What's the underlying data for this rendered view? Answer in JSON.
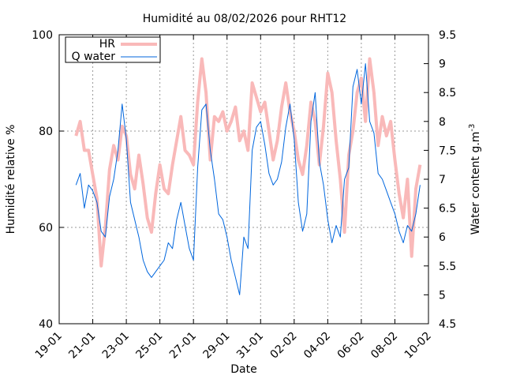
{
  "chart_data": {
    "type": "line",
    "title": "Humidité au 08/02/2026 pour RHT12",
    "xlabel": "Date",
    "ylabel_left": "Humidité relative %",
    "ylabel_right_prefix": "Water content g.m",
    "ylabel_right_sup": "-3",
    "xlim": [
      "2026-01-19",
      "2026-02-10"
    ],
    "ylim_left": [
      40,
      100
    ],
    "ylim_right": [
      4.5,
      9.5
    ],
    "x_ticks": [
      "19-01",
      "21-01",
      "23-01",
      "25-01",
      "27-01",
      "29-01",
      "31-01",
      "02-02",
      "04-02",
      "06-02",
      "08-02",
      "10-02"
    ],
    "y_left_ticks": [
      "40",
      "60",
      "80",
      "100"
    ],
    "y_right_ticks": [
      "4.5",
      "5",
      "5.5",
      "6",
      "6.5",
      "7",
      "7.5",
      "8",
      "8.5",
      "9",
      "9.5"
    ],
    "grid": true,
    "legend_position": "top-left",
    "series": [
      {
        "name": "HR",
        "axis": "left",
        "color": "#f9b9b9",
        "x": [
          "2026-01-20 00:00",
          "2026-01-20 06:00",
          "2026-01-20 12:00",
          "2026-01-20 18:00",
          "2026-01-21 00:00",
          "2026-01-21 06:00",
          "2026-01-21 12:00",
          "2026-01-21 18:00",
          "2026-01-22 00:00",
          "2026-01-22 06:00",
          "2026-01-22 12:00",
          "2026-01-22 18:00",
          "2026-01-23 00:00",
          "2026-01-23 06:00",
          "2026-01-23 12:00",
          "2026-01-23 18:00",
          "2026-01-24 00:00",
          "2026-01-24 06:00",
          "2026-01-24 12:00",
          "2026-01-24 18:00",
          "2026-01-25 00:00",
          "2026-01-25 06:00",
          "2026-01-25 12:00",
          "2026-01-25 18:00",
          "2026-01-26 00:00",
          "2026-01-26 06:00",
          "2026-01-26 12:00",
          "2026-01-26 18:00",
          "2026-01-27 00:00",
          "2026-01-27 06:00",
          "2026-01-27 12:00",
          "2026-01-27 18:00",
          "2026-01-28 00:00",
          "2026-01-28 06:00",
          "2026-01-28 12:00",
          "2026-01-28 18:00",
          "2026-01-29 00:00",
          "2026-01-29 06:00",
          "2026-01-29 12:00",
          "2026-01-29 18:00",
          "2026-01-30 00:00",
          "2026-01-30 06:00",
          "2026-01-30 12:00",
          "2026-01-30 18:00",
          "2026-01-31 00:00",
          "2026-01-31 06:00",
          "2026-01-31 12:00",
          "2026-01-31 18:00",
          "2026-02-01 00:00",
          "2026-02-01 06:00",
          "2026-02-01 12:00",
          "2026-02-01 18:00",
          "2026-02-02 00:00",
          "2026-02-02 06:00",
          "2026-02-02 12:00",
          "2026-02-02 18:00",
          "2026-02-03 00:00",
          "2026-02-03 06:00",
          "2026-02-03 12:00",
          "2026-02-03 18:00",
          "2026-02-04 00:00",
          "2026-02-04 06:00",
          "2026-02-04 12:00",
          "2026-02-04 18:00",
          "2026-02-05 00:00",
          "2026-02-05 06:00",
          "2026-02-05 12:00",
          "2026-02-05 18:00",
          "2026-02-06 00:00",
          "2026-02-06 06:00",
          "2026-02-06 12:00",
          "2026-02-06 18:00",
          "2026-02-07 00:00",
          "2026-02-07 06:00",
          "2026-02-07 12:00",
          "2026-02-07 18:00",
          "2026-02-08 00:00",
          "2026-02-08 06:00",
          "2026-02-08 12:00",
          "2026-02-08 18:00",
          "2026-02-09 00:00",
          "2026-02-09 06:00",
          "2026-02-09 12:00"
        ],
        "values": [
          79,
          82,
          76,
          76,
          71,
          66,
          52,
          60,
          72,
          77,
          74,
          81,
          79,
          71,
          68,
          75,
          69,
          62,
          59,
          67,
          73,
          68,
          67,
          73,
          78,
          83,
          76,
          75,
          73,
          86,
          95,
          88,
          74,
          83,
          82,
          84,
          80,
          82,
          85,
          78,
          80,
          76,
          90,
          87,
          84,
          86,
          80,
          74,
          78,
          85,
          90,
          84,
          80,
          74,
          71,
          77,
          86,
          82,
          73,
          81,
          92,
          88,
          78,
          70,
          59,
          75,
          80,
          88,
          91,
          82,
          95,
          88,
          77,
          83,
          79,
          82,
          74,
          67,
          62,
          70,
          54,
          68,
          73
        ]
      },
      {
        "name": "Q water",
        "axis": "right",
        "color": "#0066dd",
        "x": [
          "2026-01-20 00:00",
          "2026-01-20 06:00",
          "2026-01-20 12:00",
          "2026-01-20 18:00",
          "2026-01-21 00:00",
          "2026-01-21 06:00",
          "2026-01-21 12:00",
          "2026-01-21 18:00",
          "2026-01-22 00:00",
          "2026-01-22 06:00",
          "2026-01-22 12:00",
          "2026-01-22 18:00",
          "2026-01-23 00:00",
          "2026-01-23 06:00",
          "2026-01-23 12:00",
          "2026-01-23 18:00",
          "2026-01-24 00:00",
          "2026-01-24 06:00",
          "2026-01-24 12:00",
          "2026-01-24 18:00",
          "2026-01-25 00:00",
          "2026-01-25 06:00",
          "2026-01-25 12:00",
          "2026-01-25 18:00",
          "2026-01-26 00:00",
          "2026-01-26 06:00",
          "2026-01-26 12:00",
          "2026-01-26 18:00",
          "2026-01-27 00:00",
          "2026-01-27 06:00",
          "2026-01-27 12:00",
          "2026-01-27 18:00",
          "2026-01-28 00:00",
          "2026-01-28 06:00",
          "2026-01-28 12:00",
          "2026-01-28 18:00",
          "2026-01-29 00:00",
          "2026-01-29 06:00",
          "2026-01-29 12:00",
          "2026-01-29 18:00",
          "2026-01-30 00:00",
          "2026-01-30 06:00",
          "2026-01-30 12:00",
          "2026-01-30 18:00",
          "2026-01-31 00:00",
          "2026-01-31 06:00",
          "2026-01-31 12:00",
          "2026-01-31 18:00",
          "2026-02-01 00:00",
          "2026-02-01 06:00",
          "2026-02-01 12:00",
          "2026-02-01 18:00",
          "2026-02-02 00:00",
          "2026-02-02 06:00",
          "2026-02-02 12:00",
          "2026-02-02 18:00",
          "2026-02-03 00:00",
          "2026-02-03 06:00",
          "2026-02-03 12:00",
          "2026-02-03 18:00",
          "2026-02-04 00:00",
          "2026-02-04 06:00",
          "2026-02-04 12:00",
          "2026-02-04 18:00",
          "2026-02-05 00:00",
          "2026-02-05 06:00",
          "2026-02-05 12:00",
          "2026-02-05 18:00",
          "2026-02-06 00:00",
          "2026-02-06 06:00",
          "2026-02-06 12:00",
          "2026-02-06 18:00",
          "2026-02-07 00:00",
          "2026-02-07 06:00",
          "2026-02-07 12:00",
          "2026-02-07 18:00",
          "2026-02-08 00:00",
          "2026-02-08 06:00",
          "2026-02-08 12:00",
          "2026-02-08 18:00",
          "2026-02-09 00:00",
          "2026-02-09 06:00",
          "2026-02-09 12:00"
        ],
        "values": [
          6.9,
          7.1,
          6.5,
          6.9,
          6.8,
          6.6,
          6.1,
          6.0,
          6.7,
          7.0,
          7.5,
          8.3,
          7.7,
          6.6,
          6.3,
          6.0,
          5.6,
          5.4,
          5.3,
          5.4,
          5.5,
          5.6,
          5.9,
          5.8,
          6.3,
          6.6,
          6.2,
          5.8,
          5.6,
          7.2,
          8.2,
          8.3,
          7.5,
          7.0,
          6.4,
          6.3,
          6.0,
          5.6,
          5.3,
          5.0,
          6.0,
          5.8,
          7.5,
          7.9,
          8.0,
          7.6,
          7.1,
          6.9,
          7.0,
          7.3,
          7.9,
          8.3,
          7.7,
          6.6,
          6.1,
          6.4,
          8.0,
          8.5,
          7.3,
          6.9,
          6.3,
          5.9,
          6.2,
          6.0,
          7.0,
          7.2,
          8.6,
          8.9,
          8.3,
          9.0,
          8.0,
          7.8,
          7.1,
          7.0,
          6.8,
          6.6,
          6.4,
          6.1,
          5.9,
          6.2,
          6.1,
          6.4,
          6.9
        ]
      }
    ]
  }
}
